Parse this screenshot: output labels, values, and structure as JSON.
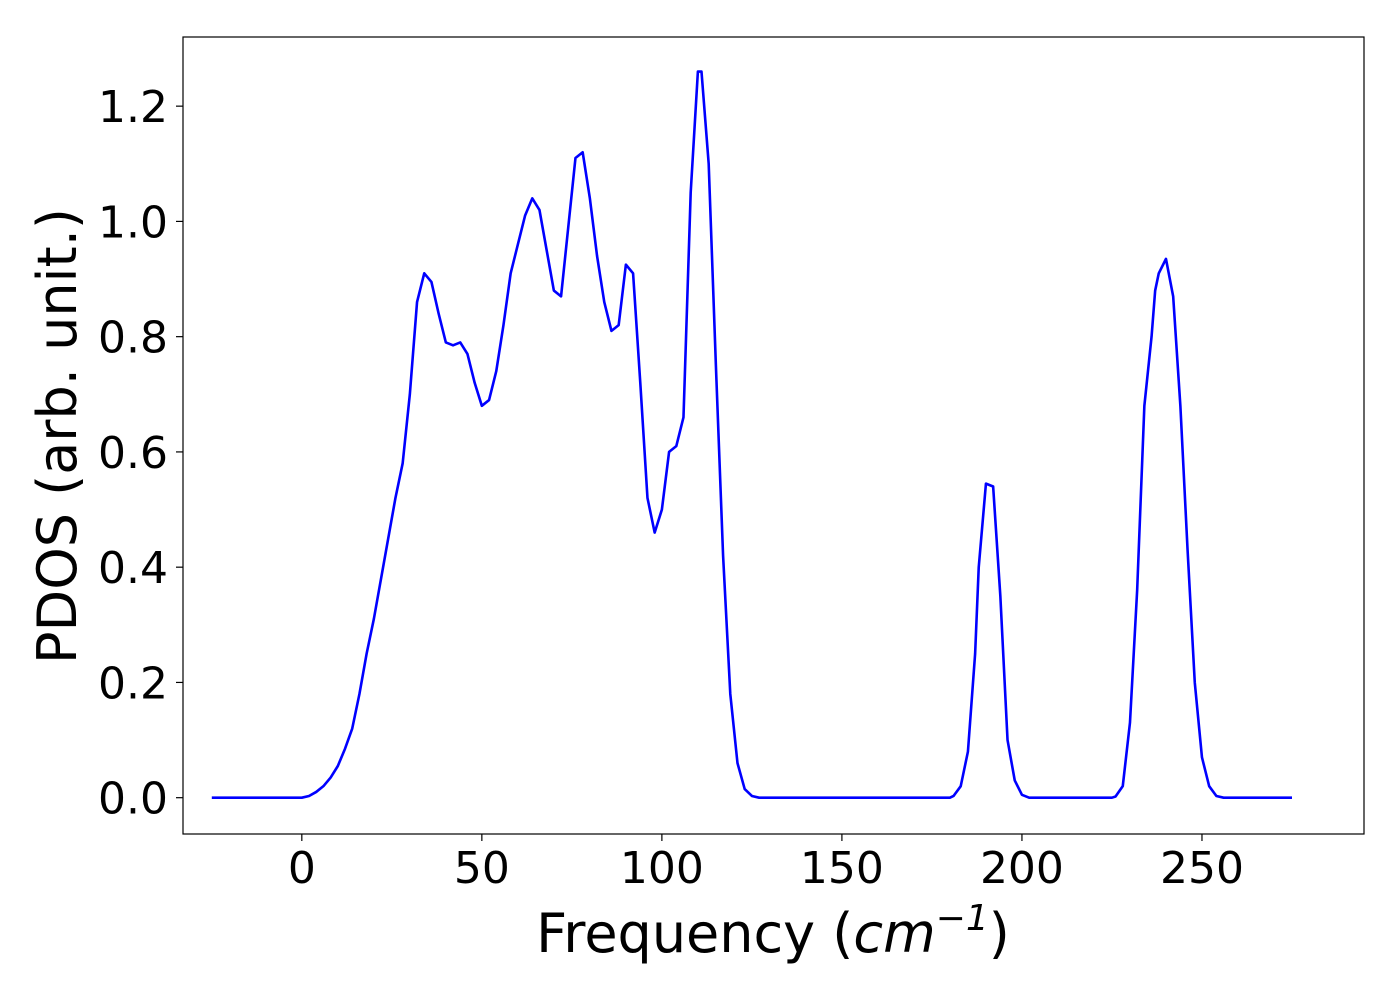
{
  "chart_data": {
    "type": "line",
    "title": "",
    "xlabel": "Frequency",
    "xlabel_unit": {
      "open": " (",
      "base": "cm",
      "exp": "−1",
      "close": ")"
    },
    "ylabel": "PDOS (arb. unit.)",
    "xlim": [
      -33,
      295
    ],
    "ylim": [
      -0.063,
      1.32
    ],
    "xticks": [
      0,
      50,
      100,
      150,
      200,
      250
    ],
    "xtick_labels": [
      "0",
      "50",
      "100",
      "150",
      "200",
      "250"
    ],
    "yticks": [
      0.0,
      0.2,
      0.4,
      0.6,
      0.8,
      1.0,
      1.2
    ],
    "ytick_labels": [
      "0.0",
      "0.2",
      "0.4",
      "0.6",
      "0.8",
      "1.0",
      "1.2"
    ],
    "grid": false,
    "legend": false,
    "colors": {
      "line": "#0000ff",
      "axes": "#000000",
      "background": "#ffffff"
    },
    "series": [
      {
        "x": [
          -25,
          -10,
          0,
          2,
          4,
          6,
          8,
          10,
          12,
          14,
          16,
          18,
          20,
          22,
          24,
          26,
          28,
          30,
          32,
          34,
          36,
          38,
          40,
          42,
          44,
          46,
          48,
          50,
          52,
          54,
          56,
          58,
          60,
          62,
          64,
          66,
          68,
          70,
          72,
          74,
          76,
          78,
          80,
          82,
          84,
          86,
          88,
          90,
          92,
          94,
          96,
          98,
          100,
          102,
          104,
          106,
          108,
          110,
          111,
          113,
          115,
          117,
          119,
          121,
          123,
          125,
          127,
          130,
          180,
          181,
          183,
          185,
          187,
          188,
          190,
          192,
          194,
          196,
          198,
          200,
          202,
          205,
          225,
          226,
          228,
          230,
          232,
          234,
          236,
          237,
          238,
          240,
          242,
          244,
          246,
          248,
          250,
          252,
          254,
          256,
          260,
          275
        ],
        "y": [
          0.0,
          0.0,
          0.0,
          0.003,
          0.01,
          0.02,
          0.035,
          0.055,
          0.085,
          0.12,
          0.18,
          0.25,
          0.31,
          0.38,
          0.45,
          0.52,
          0.58,
          0.7,
          0.86,
          0.91,
          0.895,
          0.84,
          0.79,
          0.785,
          0.79,
          0.77,
          0.72,
          0.68,
          0.69,
          0.74,
          0.82,
          0.91,
          0.96,
          1.01,
          1.04,
          1.02,
          0.95,
          0.88,
          0.87,
          0.99,
          1.11,
          1.12,
          1.04,
          0.94,
          0.86,
          0.81,
          0.82,
          0.925,
          0.91,
          0.72,
          0.52,
          0.46,
          0.5,
          0.6,
          0.61,
          0.66,
          1.05,
          1.26,
          1.26,
          1.1,
          0.75,
          0.42,
          0.18,
          0.06,
          0.015,
          0.003,
          0.0,
          0.0,
          0.0,
          0.003,
          0.02,
          0.08,
          0.25,
          0.4,
          0.545,
          0.54,
          0.35,
          0.1,
          0.03,
          0.005,
          0.0,
          0.0,
          0.0,
          0.002,
          0.02,
          0.13,
          0.36,
          0.68,
          0.8,
          0.88,
          0.91,
          0.935,
          0.87,
          0.68,
          0.43,
          0.2,
          0.07,
          0.02,
          0.003,
          0.0,
          0.0,
          0.0
        ]
      }
    ]
  }
}
